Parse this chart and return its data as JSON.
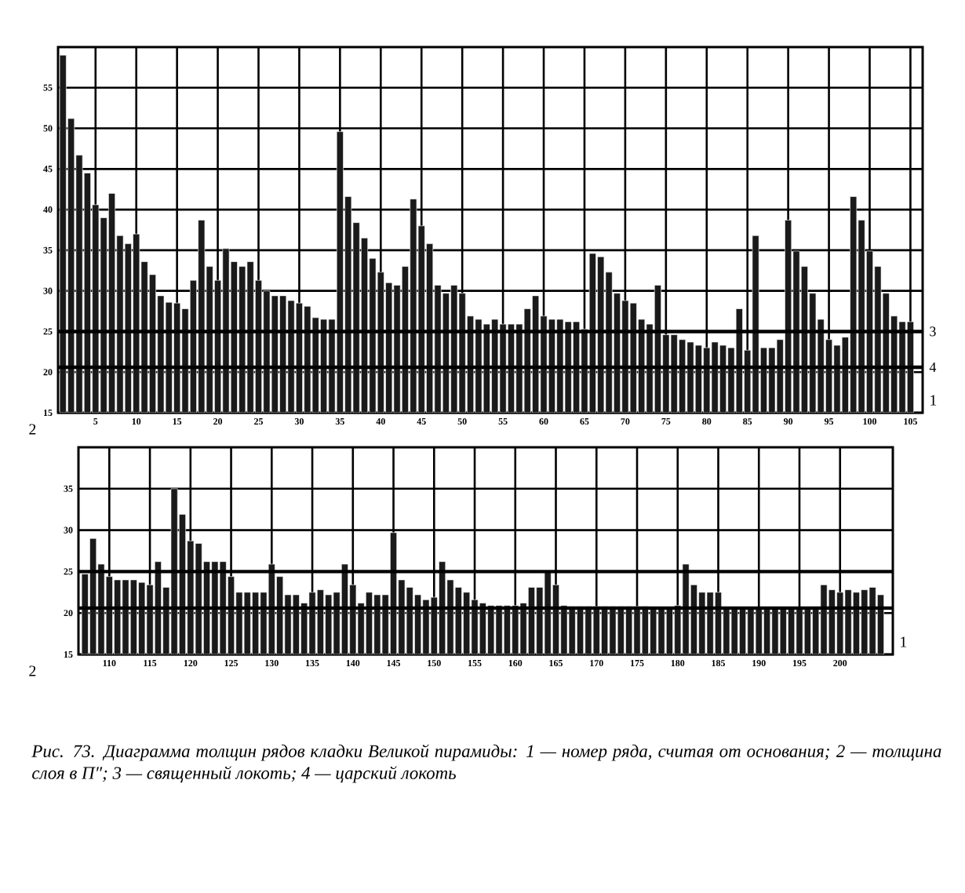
{
  "chart_data": [
    {
      "type": "bar",
      "xlabel": "1",
      "ylabel": "2",
      "color": "#1a1a1a",
      "grid": true,
      "xlim": [
        0.4,
        106.5
      ],
      "ylim": [
        15,
        60
      ],
      "xticks": [
        5,
        10,
        15,
        20,
        25,
        30,
        35,
        40,
        45,
        50,
        55,
        60,
        65,
        70,
        75,
        80,
        85,
        90,
        95,
        100,
        105
      ],
      "yticks": [
        15,
        20,
        25,
        30,
        35,
        40,
        45,
        50,
        55
      ],
      "ref_lines": [
        {
          "axis": "y",
          "value": 25
        },
        {
          "axis": "y",
          "value": 20.6
        }
      ],
      "annotations": [
        "3",
        "4"
      ],
      "x": [
        1,
        2,
        3,
        4,
        5,
        6,
        7,
        8,
        9,
        10,
        11,
        12,
        13,
        14,
        15,
        16,
        17,
        18,
        19,
        20,
        21,
        22,
        23,
        24,
        25,
        26,
        27,
        28,
        29,
        30,
        31,
        32,
        33,
        34,
        35,
        36,
        37,
        38,
        39,
        40,
        41,
        42,
        43,
        44,
        45,
        46,
        47,
        48,
        49,
        50,
        51,
        52,
        53,
        54,
        55,
        56,
        57,
        58,
        59,
        60,
        61,
        62,
        63,
        64,
        65,
        66,
        67,
        68,
        69,
        70,
        71,
        72,
        73,
        74,
        75,
        76,
        77,
        78,
        79,
        80,
        81,
        82,
        83,
        84,
        85,
        86,
        87,
        88,
        89,
        90,
        91,
        92,
        93,
        94,
        95,
        96,
        97,
        98,
        99,
        100,
        101,
        102,
        103,
        104,
        105
      ],
      "values": [
        59,
        51.2,
        46.7,
        44.5,
        40.6,
        39,
        42,
        36.8,
        35.8,
        37,
        33.6,
        32,
        29.4,
        28.6,
        28.5,
        27.8,
        31.3,
        38.7,
        33,
        31.3,
        35.2,
        33.6,
        33,
        33.6,
        31.3,
        30,
        29.4,
        29.4,
        28.8,
        28.5,
        28.1,
        26.7,
        26.5,
        26.5,
        49.6,
        41.6,
        38.4,
        36.5,
        34,
        32.3,
        31,
        30.7,
        33,
        41.3,
        38,
        35.8,
        30.7,
        29.7,
        30.7,
        29.7,
        26.9,
        26.5,
        25.9,
        26.5,
        25.9,
        25.9,
        25.9,
        27.8,
        29.4,
        26.9,
        26.5,
        26.5,
        26.2,
        26.2,
        25.3,
        34.6,
        34.2,
        32.3,
        29.7,
        28.8,
        28.5,
        26.5,
        25.9,
        30.7,
        24.6,
        24.6,
        24,
        23.7,
        23.3,
        23,
        23.7,
        23.3,
        23,
        27.8,
        22.7,
        36.8,
        23,
        23,
        24,
        38.7,
        34.9,
        33,
        29.7,
        26.5,
        24,
        23.3,
        24.3,
        41.6,
        38.7,
        34.9,
        33,
        29.7,
        26.9,
        26.2,
        26.2
      ]
    },
    {
      "type": "bar",
      "xlabel": "1",
      "ylabel": "2",
      "color": "#1a1a1a",
      "grid": true,
      "xlim": [
        106.2,
        206.5
      ],
      "ylim": [
        15,
        40
      ],
      "xticks": [
        110,
        115,
        120,
        125,
        130,
        135,
        140,
        145,
        150,
        155,
        160,
        165,
        170,
        175,
        180,
        185,
        190,
        195,
        200
      ],
      "yticks": [
        15,
        20,
        25,
        30,
        35
      ],
      "ref_lines": [
        {
          "axis": "y",
          "value": 25
        },
        {
          "axis": "y",
          "value": 20.6
        }
      ],
      "annotations": [
        "*Рис. 73. Диаграмма толщин рядов кладки Великой пирамиды: 1 — номер ряда, считая от основания; 2 — толщина слоя в П″; 3 — священный локоть; 4 — царский локоть*"
      ],
      "x": [
        107,
        108,
        109,
        110,
        111,
        112,
        113,
        114,
        115,
        116,
        117,
        118,
        119,
        120,
        121,
        122,
        123,
        124,
        125,
        126,
        127,
        128,
        129,
        130,
        131,
        132,
        133,
        134,
        135,
        136,
        137,
        138,
        139,
        140,
        141,
        142,
        143,
        144,
        145,
        146,
        147,
        148,
        149,
        150,
        151,
        152,
        153,
        154,
        155,
        156,
        157,
        158,
        159,
        160,
        161,
        162,
        163,
        164,
        165,
        166,
        167,
        168,
        169,
        170,
        171,
        172,
        173,
        174,
        175,
        176,
        177,
        178,
        179,
        180,
        181,
        182,
        183,
        184,
        185,
        186,
        187,
        188,
        189,
        190,
        191,
        192,
        193,
        194,
        195,
        196,
        197,
        198,
        199,
        200,
        201,
        202,
        203,
        204,
        205
      ],
      "values": [
        24.7,
        29,
        25.9,
        24.4,
        24,
        24,
        24,
        23.7,
        23.4,
        26.2,
        23.1,
        35,
        31.9,
        28.7,
        28.4,
        26.2,
        26.2,
        26.2,
        24.4,
        22.5,
        22.5,
        22.5,
        22.5,
        25.9,
        24.4,
        22.2,
        22.2,
        21.2,
        22.5,
        22.8,
        22.2,
        22.5,
        25.9,
        23.4,
        21.2,
        22.5,
        22.2,
        22.2,
        29.7,
        24,
        23.1,
        22.2,
        21.6,
        21.9,
        26.2,
        24,
        23.1,
        22.5,
        21.6,
        21.2,
        20.9,
        20.9,
        20.9,
        20.9,
        21.2,
        23.1,
        23.1,
        25.1,
        23.4,
        20.9,
        20.8,
        20.8,
        20.8,
        20.8,
        20.8,
        20.8,
        20.8,
        20.8,
        20.8,
        20.8,
        20.6,
        20.6,
        20.6,
        20.9,
        25.9,
        23.4,
        22.5,
        22.5,
        22.5,
        20.6,
        20.6,
        20.6,
        20.6,
        20.6,
        20.6,
        20.6,
        20.6,
        20.6,
        20.6,
        20.6,
        20.6,
        23.4,
        22.8,
        22.5,
        22.8,
        22.5,
        22.8,
        23.1,
        22.2
      ]
    }
  ]
}
